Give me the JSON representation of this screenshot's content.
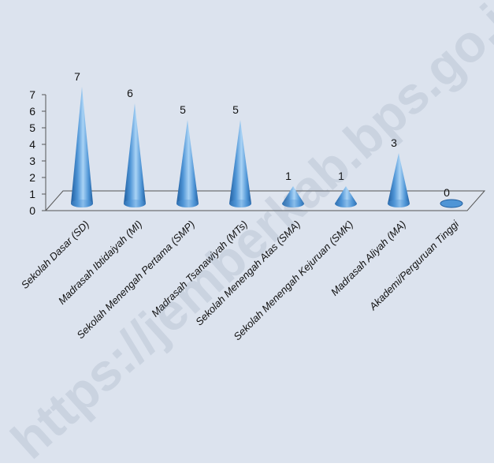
{
  "watermark": "https://jemberkab.bps.go.id",
  "colors": {
    "background": "#dce3ee",
    "cone_light": "#a9d3f5",
    "cone_mid": "#4f95d6",
    "cone_dark": "#1f5d9e",
    "floor": "#dfe5ef",
    "axis": "#555555",
    "text": "#111111",
    "watermark": "#5f6f8c"
  },
  "chart_data": {
    "type": "bar",
    "style": "3d-cone",
    "categories": [
      "Sekolah Dasar (SD)",
      "Madrasah Ibtidaiyah (MI)",
      "Sekolah Menengah Pertama (SMP)",
      "Madrasah Tsanawiyah (MTs)",
      "Sekolah Menengah Atas (SMA)",
      "Sekolah Menengah Kejuruan (SMK)",
      "Madrasah Aliyah (MA)",
      "Akademi/Perguruan Tinggi"
    ],
    "values": [
      7,
      6,
      5,
      5,
      1,
      1,
      3,
      0
    ],
    "data_labels": [
      "7",
      "6",
      "5",
      "5",
      "1",
      "1",
      "3",
      "0"
    ],
    "ylim": [
      0,
      7
    ],
    "yticks": [
      "0",
      "1",
      "2",
      "3",
      "4",
      "5",
      "6",
      "7"
    ],
    "grid": false,
    "legend": "none"
  }
}
